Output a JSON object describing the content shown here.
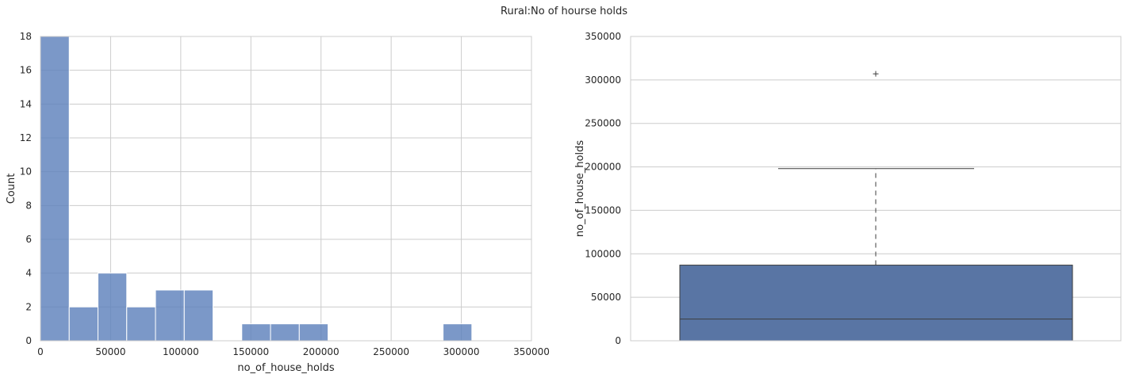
{
  "figure": {
    "suptitle": "Rural:No of hourse holds"
  },
  "chart_data": [
    {
      "type": "bar",
      "subtype": "histogram",
      "xlabel": "no_of_house_holds",
      "ylabel": "Count",
      "xlim": [
        0,
        350000
      ],
      "ylim": [
        0,
        18
      ],
      "xticks": [
        "0",
        "50000",
        "100000",
        "150000",
        "200000",
        "250000",
        "300000",
        "350000"
      ],
      "yticks": [
        "0",
        "2",
        "4",
        "6",
        "8",
        "10",
        "12",
        "14",
        "16",
        "18"
      ],
      "grid": true,
      "color": "#5e81bc",
      "bins": [
        {
          "x0": 0,
          "x1": 20500,
          "count": 18
        },
        {
          "x0": 20500,
          "x1": 41000,
          "count": 2
        },
        {
          "x0": 41000,
          "x1": 61500,
          "count": 4
        },
        {
          "x0": 61500,
          "x1": 82000,
          "count": 2
        },
        {
          "x0": 82000,
          "x1": 102500,
          "count": 3
        },
        {
          "x0": 102500,
          "x1": 123000,
          "count": 3
        },
        {
          "x0": 123000,
          "x1": 143500,
          "count": 0
        },
        {
          "x0": 143500,
          "x1": 164000,
          "count": 1
        },
        {
          "x0": 164000,
          "x1": 184500,
          "count": 1
        },
        {
          "x0": 184500,
          "x1": 205000,
          "count": 1
        },
        {
          "x0": 205000,
          "x1": 225500,
          "count": 0
        },
        {
          "x0": 225500,
          "x1": 246000,
          "count": 0
        },
        {
          "x0": 246000,
          "x1": 266500,
          "count": 0
        },
        {
          "x0": 266500,
          "x1": 287000,
          "count": 0
        },
        {
          "x0": 287000,
          "x1": 307500,
          "count": 1
        }
      ]
    },
    {
      "type": "box",
      "ylabel": "no_of_house_holds",
      "ylim": [
        0,
        350000
      ],
      "yticks": [
        "0",
        "50000",
        "100000",
        "150000",
        "200000",
        "250000",
        "300000",
        "350000"
      ],
      "grid": true,
      "color": "#5975a4",
      "q1": 0,
      "median": 25000,
      "q3": 87000,
      "whisker_low": 0,
      "whisker_high": 198000,
      "outliers": [
        307000
      ]
    }
  ]
}
